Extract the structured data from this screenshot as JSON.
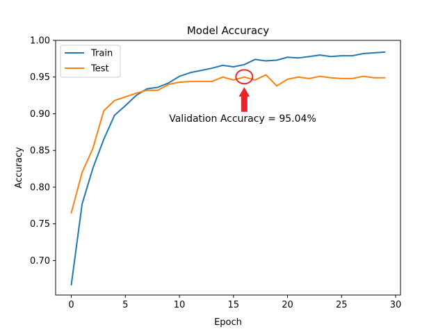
{
  "chart_data": {
    "type": "line",
    "title": "Model Accuracy",
    "xlabel": "Epoch",
    "ylabel": "Accuracy",
    "xlim": [
      -1.45,
      30.45
    ],
    "ylim": [
      0.653,
      1.0
    ],
    "xticks": [
      0,
      5,
      10,
      15,
      20,
      25,
      30
    ],
    "yticks": [
      0.7,
      0.75,
      0.8,
      0.85,
      0.9,
      0.95,
      1.0
    ],
    "ytick_labels": [
      "0.70",
      "0.75",
      "0.80",
      "0.85",
      "0.90",
      "0.95",
      "1.00"
    ],
    "grid": false,
    "legend_position": "top-left",
    "x": [
      0,
      1,
      2,
      3,
      4,
      5,
      6,
      7,
      8,
      9,
      10,
      11,
      12,
      13,
      14,
      15,
      16,
      17,
      18,
      19,
      20,
      21,
      22,
      23,
      24,
      25,
      26,
      27,
      28,
      29
    ],
    "series": [
      {
        "name": "Train",
        "color": "#1f77b4",
        "values": [
          0.667,
          0.777,
          0.826,
          0.865,
          0.898,
          0.911,
          0.925,
          0.934,
          0.936,
          0.942,
          0.951,
          0.956,
          0.959,
          0.962,
          0.966,
          0.964,
          0.967,
          0.974,
          0.972,
          0.973,
          0.977,
          0.976,
          0.978,
          0.98,
          0.978,
          0.979,
          0.979,
          0.982,
          0.983,
          0.984
        ]
      },
      {
        "name": "Test",
        "color": "#ff7f0e",
        "values": [
          0.765,
          0.82,
          0.853,
          0.904,
          0.918,
          0.923,
          0.928,
          0.932,
          0.932,
          0.94,
          0.943,
          0.944,
          0.944,
          0.944,
          0.95,
          0.946,
          0.95,
          0.946,
          0.953,
          0.938,
          0.947,
          0.95,
          0.948,
          0.951,
          0.949,
          0.948,
          0.948,
          0.951,
          0.949,
          0.949
        ]
      }
    ],
    "annotation": {
      "text": "Validation Accuracy = 95.04%",
      "x": 16,
      "y": 0.9504,
      "marker_color": "#e8232b"
    }
  }
}
